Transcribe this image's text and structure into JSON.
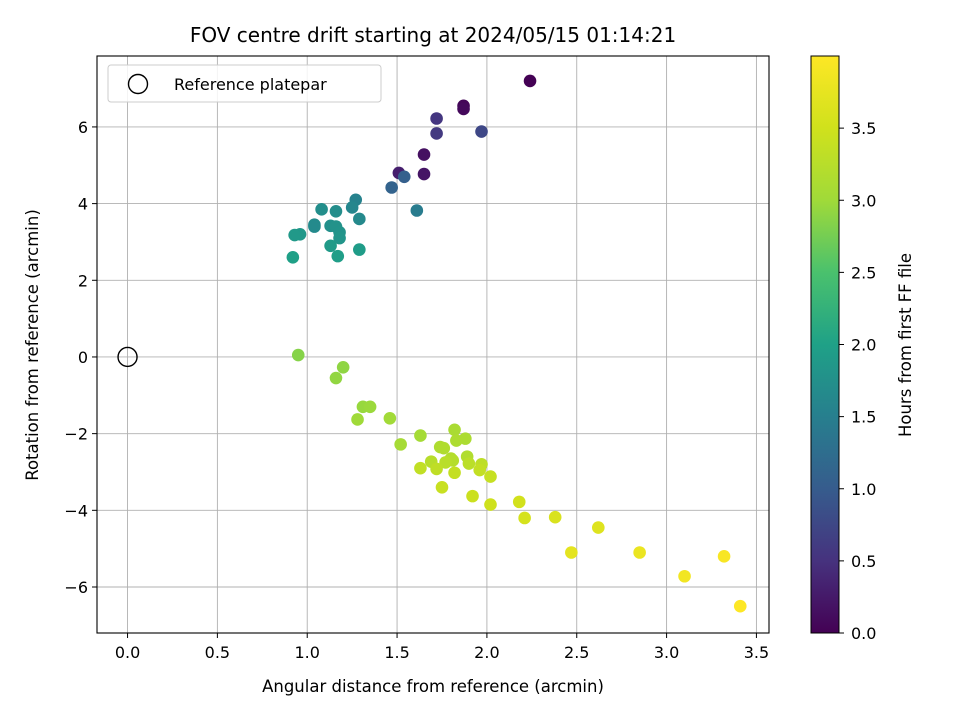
{
  "chart_data": {
    "type": "scatter",
    "title": "FOV centre drift starting at 2024/05/15 01:14:21",
    "xlabel": "Angular distance from reference (arcmin)",
    "ylabel": "Rotation from reference (arcmin)",
    "xlim": [
      -0.17,
      3.57
    ],
    "ylim": [
      -7.2,
      7.85
    ],
    "x_ticks": [
      0.0,
      0.5,
      1.0,
      1.5,
      2.0,
      2.5,
      3.0,
      3.5
    ],
    "x_tick_labels": [
      "0.0",
      "0.5",
      "1.0",
      "1.5",
      "2.0",
      "2.5",
      "3.0",
      "3.5"
    ],
    "y_ticks": [
      -6,
      -4,
      -2,
      0,
      2,
      4,
      6
    ],
    "y_tick_labels": [
      "−6",
      "−4",
      "−2",
      "0",
      "2",
      "4",
      "6"
    ],
    "grid": true,
    "legend": {
      "placement": "top-left",
      "entries": [
        {
          "label": "Reference platepar",
          "marker": "open-circle",
          "x": 0.0,
          "y": 0.0
        }
      ]
    },
    "colorbar": {
      "label": "Hours from first FF file",
      "colormap": "viridis",
      "range": [
        0.0,
        4.0
      ],
      "ticks": [
        0.0,
        0.5,
        1.0,
        1.5,
        2.0,
        2.5,
        3.0,
        3.5
      ],
      "tick_labels": [
        "0.0",
        "0.5",
        "1.0",
        "1.5",
        "2.0",
        "2.5",
        "3.0",
        "3.5"
      ]
    },
    "points": [
      {
        "x": 2.24,
        "y": 7.2,
        "c": 0.0
      },
      {
        "x": 1.87,
        "y": 6.55,
        "c": 0.05
      },
      {
        "x": 1.87,
        "y": 6.47,
        "c": 0.08
      },
      {
        "x": 1.65,
        "y": 5.28,
        "c": 0.15
      },
      {
        "x": 1.65,
        "y": 4.77,
        "c": 0.2
      },
      {
        "x": 1.51,
        "y": 4.8,
        "c": 0.3
      },
      {
        "x": 1.72,
        "y": 6.22,
        "c": 0.55
      },
      {
        "x": 1.72,
        "y": 5.83,
        "c": 0.6
      },
      {
        "x": 1.97,
        "y": 5.88,
        "c": 0.75
      },
      {
        "x": 1.54,
        "y": 4.7,
        "c": 1.05
      },
      {
        "x": 1.47,
        "y": 4.42,
        "c": 1.1
      },
      {
        "x": 1.61,
        "y": 3.82,
        "c": 1.45
      },
      {
        "x": 1.27,
        "y": 4.1,
        "c": 1.55
      },
      {
        "x": 1.25,
        "y": 3.9,
        "c": 1.6
      },
      {
        "x": 1.29,
        "y": 3.6,
        "c": 1.65
      },
      {
        "x": 1.16,
        "y": 3.8,
        "c": 1.7
      },
      {
        "x": 1.08,
        "y": 3.85,
        "c": 1.72
      },
      {
        "x": 1.04,
        "y": 3.45,
        "c": 1.68
      },
      {
        "x": 1.04,
        "y": 3.4,
        "c": 1.66
      },
      {
        "x": 1.13,
        "y": 3.42,
        "c": 1.75
      },
      {
        "x": 1.16,
        "y": 3.4,
        "c": 1.78
      },
      {
        "x": 1.18,
        "y": 3.25,
        "c": 1.8
      },
      {
        "x": 1.18,
        "y": 3.1,
        "c": 1.82
      },
      {
        "x": 0.96,
        "y": 3.2,
        "c": 1.85
      },
      {
        "x": 0.93,
        "y": 3.18,
        "c": 1.88
      },
      {
        "x": 1.13,
        "y": 2.9,
        "c": 1.9
      },
      {
        "x": 1.29,
        "y": 2.8,
        "c": 1.92
      },
      {
        "x": 1.17,
        "y": 2.63,
        "c": 1.95
      },
      {
        "x": 0.92,
        "y": 2.6,
        "c": 1.98
      },
      {
        "x": 0.95,
        "y": 0.05,
        "c": 2.85
      },
      {
        "x": 1.2,
        "y": -0.27,
        "c": 2.9
      },
      {
        "x": 1.16,
        "y": -0.55,
        "c": 2.92
      },
      {
        "x": 1.31,
        "y": -1.3,
        "c": 2.95
      },
      {
        "x": 1.35,
        "y": -1.3,
        "c": 2.97
      },
      {
        "x": 1.28,
        "y": -1.63,
        "c": 3.0
      },
      {
        "x": 1.46,
        "y": -1.6,
        "c": 3.02
      },
      {
        "x": 1.63,
        "y": -2.05,
        "c": 3.05
      },
      {
        "x": 1.52,
        "y": -2.28,
        "c": 3.06
      },
      {
        "x": 1.82,
        "y": -1.9,
        "c": 3.1
      },
      {
        "x": 1.88,
        "y": -2.13,
        "c": 3.12
      },
      {
        "x": 1.83,
        "y": -2.18,
        "c": 3.14
      },
      {
        "x": 1.74,
        "y": -2.35,
        "c": 3.15
      },
      {
        "x": 1.76,
        "y": -2.38,
        "c": 3.17
      },
      {
        "x": 1.89,
        "y": -2.6,
        "c": 3.18
      },
      {
        "x": 1.8,
        "y": -2.65,
        "c": 3.2
      },
      {
        "x": 1.81,
        "y": -2.7,
        "c": 3.22
      },
      {
        "x": 1.69,
        "y": -2.73,
        "c": 3.24
      },
      {
        "x": 1.77,
        "y": -2.75,
        "c": 3.26
      },
      {
        "x": 1.9,
        "y": -2.78,
        "c": 3.28
      },
      {
        "x": 1.97,
        "y": -2.8,
        "c": 3.3
      },
      {
        "x": 1.72,
        "y": -2.92,
        "c": 3.32
      },
      {
        "x": 1.63,
        "y": -2.9,
        "c": 3.34
      },
      {
        "x": 1.96,
        "y": -2.95,
        "c": 3.36
      },
      {
        "x": 1.82,
        "y": -3.02,
        "c": 3.38
      },
      {
        "x": 2.02,
        "y": -3.12,
        "c": 3.4
      },
      {
        "x": 1.75,
        "y": -3.4,
        "c": 3.42
      },
      {
        "x": 1.92,
        "y": -3.63,
        "c": 3.45
      },
      {
        "x": 2.02,
        "y": -3.85,
        "c": 3.48
      },
      {
        "x": 2.18,
        "y": -3.78,
        "c": 3.52
      },
      {
        "x": 2.21,
        "y": -4.2,
        "c": 3.56
      },
      {
        "x": 2.38,
        "y": -4.18,
        "c": 3.6
      },
      {
        "x": 2.62,
        "y": -4.45,
        "c": 3.65
      },
      {
        "x": 2.47,
        "y": -5.1,
        "c": 3.72
      },
      {
        "x": 2.85,
        "y": -5.1,
        "c": 3.8
      },
      {
        "x": 3.1,
        "y": -5.72,
        "c": 3.88
      },
      {
        "x": 3.32,
        "y": -5.2,
        "c": 3.94
      },
      {
        "x": 3.41,
        "y": -6.5,
        "c": 4.0
      }
    ]
  }
}
